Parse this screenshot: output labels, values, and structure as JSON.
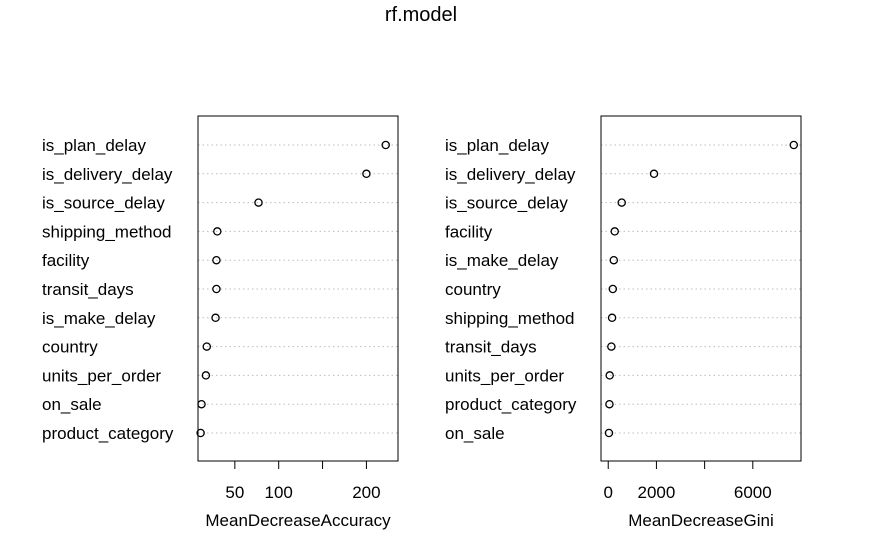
{
  "title": "rf.model",
  "chart_data": [
    {
      "type": "scatter",
      "subtype": "dotchart",
      "xlabel": "MeanDecreaseAccuracy",
      "xlim": [
        8,
        236
      ],
      "xticks": [
        50,
        100,
        150,
        200
      ],
      "xtick_labels": [
        "50",
        "100",
        "",
        "200"
      ],
      "grid": "dotted horizontal",
      "categories": [
        "is_plan_delay",
        "is_delivery_delay",
        "is_source_delay",
        "shipping_method",
        "facility",
        "transit_days",
        "is_make_delay",
        "country",
        "units_per_order",
        "on_sale",
        "product_category"
      ],
      "values": [
        222,
        200,
        77,
        30,
        29,
        29,
        28,
        18,
        17,
        12,
        11
      ]
    },
    {
      "type": "scatter",
      "subtype": "dotchart",
      "xlabel": "MeanDecreaseGini",
      "xlim": [
        -300,
        8000
      ],
      "xticks": [
        0,
        2000,
        4000,
        6000
      ],
      "xtick_labels": [
        "0",
        "2000",
        "",
        "6000"
      ],
      "grid": "dotted horizontal",
      "categories": [
        "is_plan_delay",
        "is_delivery_delay",
        "is_source_delay",
        "facility",
        "is_make_delay",
        "country",
        "shipping_method",
        "transit_days",
        "units_per_order",
        "product_category",
        "on_sale"
      ],
      "values": [
        7700,
        1900,
        560,
        270,
        230,
        190,
        160,
        130,
        60,
        50,
        30
      ]
    }
  ]
}
